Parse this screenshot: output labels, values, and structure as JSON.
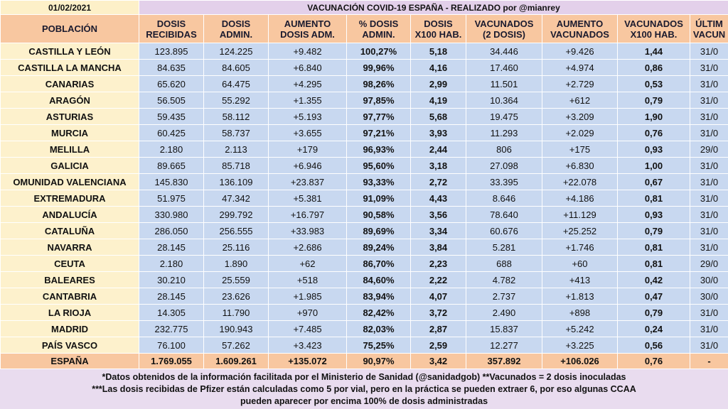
{
  "header": {
    "date": "01/02/2021",
    "title": "VACUNACIÓN COVID-19 ESPAÑA - REALIZADO por @mianrey"
  },
  "table": {
    "columns": [
      [
        "POBLACIÓN"
      ],
      [
        "DOSIS",
        "RECIBIDAS"
      ],
      [
        "DOSIS",
        "ADMIN."
      ],
      [
        "AUMENTO",
        "DOSIS ADM."
      ],
      [
        "% DOSIS",
        "ADMIN."
      ],
      [
        "DOSIS",
        "X100 HAB."
      ],
      [
        "VACUNADOS",
        "(2 DOSIS)"
      ],
      [
        "AUMENTO",
        "VACUNADOS"
      ],
      [
        "VACUNADOS",
        "X100 HAB."
      ],
      [
        "ÚLTIM",
        "VACUN"
      ]
    ],
    "rows": [
      [
        "CASTILLA Y LEÓN",
        "123.895",
        "124.225",
        "+9.482",
        "100,27%",
        "5,18",
        "34.446",
        "+9.426",
        "1,44",
        "31/0"
      ],
      [
        "CASTILLA LA MANCHA",
        "84.635",
        "84.605",
        "+6.840",
        "99,96%",
        "4,16",
        "17.460",
        "+4.974",
        "0,86",
        "31/0"
      ],
      [
        "CANARIAS",
        "65.620",
        "64.475",
        "+4.295",
        "98,26%",
        "2,99",
        "11.501",
        "+2.729",
        "0,53",
        "31/0"
      ],
      [
        "ARAGÓN",
        "56.505",
        "55.292",
        "+1.355",
        "97,85%",
        "4,19",
        "10.364",
        "+612",
        "0,79",
        "31/0"
      ],
      [
        "ASTURIAS",
        "59.435",
        "58.112",
        "+5.193",
        "97,77%",
        "5,68",
        "19.475",
        "+3.209",
        "1,90",
        "31/0"
      ],
      [
        "MURCIA",
        "60.425",
        "58.737",
        "+3.655",
        "97,21%",
        "3,93",
        "11.293",
        "+2.029",
        "0,76",
        "31/0"
      ],
      [
        "MELILLA",
        "2.180",
        "2.113",
        "+179",
        "96,93%",
        "2,44",
        "806",
        "+175",
        "0,93",
        "29/0"
      ],
      [
        "GALICIA",
        "89.665",
        "85.718",
        "+6.946",
        "95,60%",
        "3,18",
        "27.098",
        "+6.830",
        "1,00",
        "31/0"
      ],
      [
        "OMUNIDAD VALENCIANA",
        "145.830",
        "136.109",
        "+23.837",
        "93,33%",
        "2,72",
        "33.395",
        "+22.078",
        "0,67",
        "31/0"
      ],
      [
        "EXTREMADURA",
        "51.975",
        "47.342",
        "+5.381",
        "91,09%",
        "4,43",
        "8.646",
        "+4.186",
        "0,81",
        "31/0"
      ],
      [
        "ANDALUCÍA",
        "330.980",
        "299.792",
        "+16.797",
        "90,58%",
        "3,56",
        "78.640",
        "+11.129",
        "0,93",
        "31/0"
      ],
      [
        "CATALUÑA",
        "286.050",
        "256.555",
        "+33.983",
        "89,69%",
        "3,34",
        "60.676",
        "+25.252",
        "0,79",
        "31/0"
      ],
      [
        "NAVARRA",
        "28.145",
        "25.116",
        "+2.686",
        "89,24%",
        "3,84",
        "5.281",
        "+1.746",
        "0,81",
        "31/0"
      ],
      [
        "CEUTA",
        "2.180",
        "1.890",
        "+62",
        "86,70%",
        "2,23",
        "688",
        "+60",
        "0,81",
        "29/0"
      ],
      [
        "BALEARES",
        "30.210",
        "25.559",
        "+518",
        "84,60%",
        "2,22",
        "4.782",
        "+413",
        "0,42",
        "30/0"
      ],
      [
        "CANTABRIA",
        "28.145",
        "23.626",
        "+1.985",
        "83,94%",
        "4,07",
        "2.737",
        "+1.813",
        "0,47",
        "30/0"
      ],
      [
        "LA RIOJA",
        "14.305",
        "11.790",
        "+970",
        "82,42%",
        "3,72",
        "2.490",
        "+898",
        "0,79",
        "31/0"
      ],
      [
        "MADRID",
        "232.775",
        "190.943",
        "+7.485",
        "82,03%",
        "2,87",
        "15.837",
        "+5.242",
        "0,24",
        "31/0"
      ],
      [
        "PAÍS VASCO",
        "76.100",
        "57.262",
        "+3.423",
        "75,25%",
        "2,59",
        "12.277",
        "+3.225",
        "0,56",
        "31/0"
      ]
    ],
    "total": [
      "ESPAÑA",
      "1.769.055",
      "1.609.261",
      "+135.072",
      "90,97%",
      "3,42",
      "357.892",
      "+106.026",
      "0,76",
      "-"
    ]
  },
  "footer": {
    "lines": [
      "*Datos obtenidos de la información facilitada por el Ministerio de Sanidad (@sanidadgob)  **Vacunados = 2 dosis inoculadas",
      "***Las dosis recibidas de Pfizer están calculadas como 5 por vial, pero en la práctica se pueden extraer 6, por eso algunas CCAA",
      "pueden aparecer por encima 100% de dosis administradas"
    ]
  }
}
